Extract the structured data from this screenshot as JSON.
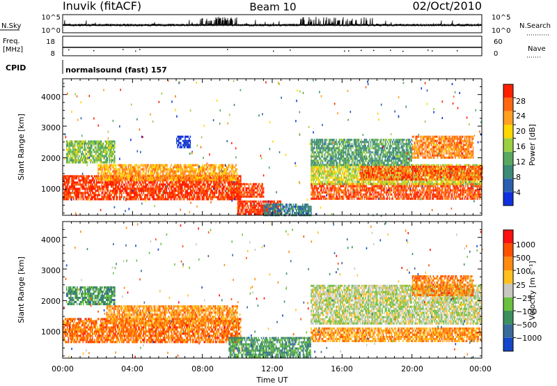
{
  "header": {
    "station": "Inuvik (fitACF)",
    "beam": "Beam 10",
    "date": "02/Oct/2010"
  },
  "top_panels": {
    "nsky_label": "N.Sky",
    "nsearch_label": "N.Search",
    "noise_ticks_left": [
      "10^5",
      "10^0"
    ],
    "noise_ticks_right": [
      "10^5",
      "10^0"
    ],
    "freq_label_1": "Freq.",
    "freq_label_2": "[MHz]",
    "freq_ticks": [
      "18",
      "8"
    ],
    "nave_label": "Nave",
    "nave_ticks": [
      "60",
      "0"
    ],
    "cpid_label": "CPID",
    "cpid_text": "normalsound (fast) 157"
  },
  "chart_data": [
    {
      "type": "heatmap",
      "title": "Power",
      "ylabel": "Slant Range [km]",
      "y_ticks": [
        "4000",
        "3000",
        "2000",
        "1000"
      ],
      "ylim": [
        180,
        4500
      ],
      "xlim": [
        0,
        24
      ],
      "colorbar_label": "Power [dB]",
      "colorbar_ticks": [
        "28",
        "24",
        "20",
        "16",
        "12",
        "8",
        "4"
      ],
      "colorscale": [
        "#1030e0",
        "#2a5fb0",
        "#3c8a78",
        "#5aa860",
        "#9cd040",
        "#ffd700",
        "#ffa020",
        "#ff6810",
        "#ff2000"
      ],
      "bands": [
        {
          "t0": 0.0,
          "t1": 10.2,
          "r0": 700,
          "r1": 1450,
          "level": 0.92
        },
        {
          "t0": 2.0,
          "t1": 10.0,
          "r0": 1300,
          "r1": 1800,
          "level": 0.72
        },
        {
          "t0": 0.2,
          "t1": 3.0,
          "r0": 1850,
          "r1": 2550,
          "level": 0.45
        },
        {
          "t0": 6.5,
          "t1": 7.3,
          "r0": 2350,
          "r1": 2700,
          "level": 0.05
        },
        {
          "t0": 9.5,
          "t1": 11.5,
          "r0": 800,
          "r1": 1200,
          "level": 0.9
        },
        {
          "t0": 10.0,
          "t1": 12.5,
          "r0": 200,
          "r1": 650,
          "level": 0.96
        },
        {
          "t0": 11.5,
          "t1": 14.2,
          "r0": 200,
          "r1": 550,
          "level": 0.25
        },
        {
          "t0": 14.2,
          "t1": 24.0,
          "r0": 700,
          "r1": 1200,
          "level": 0.88
        },
        {
          "t0": 14.2,
          "t1": 24.0,
          "r0": 1200,
          "r1": 1800,
          "level": 0.55
        },
        {
          "t0": 17.0,
          "t1": 24.0,
          "r0": 1350,
          "r1": 1750,
          "level": 0.85
        },
        {
          "t0": 14.2,
          "t1": 20.0,
          "r0": 1800,
          "r1": 2600,
          "level": 0.35
        },
        {
          "t0": 20.0,
          "t1": 23.5,
          "r0": 2000,
          "r1": 2700,
          "level": 0.78
        }
      ]
    },
    {
      "type": "heatmap",
      "title": "Velocity",
      "ylabel": "Slant Range [km]",
      "y_ticks": [
        "4000",
        "3000",
        "2000",
        "1000"
      ],
      "ylim": [
        180,
        4500
      ],
      "xlim": [
        0,
        24
      ],
      "colorbar_label": "Velocity [m s⁻¹]",
      "colorbar_ticks": [
        "1000",
        "500",
        "100",
        "25",
        "−25",
        "−100",
        "−500",
        "−1000"
      ],
      "colorscale": [
        "#1545c8",
        "#3a6a9a",
        "#3c9060",
        "#6cc040",
        "#c8c8c0",
        "#ffc020",
        "#ff8a10",
        "#ff5000",
        "#ff1010"
      ],
      "bands": [
        {
          "t0": 0.0,
          "t1": 10.2,
          "r0": 700,
          "r1": 1450,
          "level": 0.77
        },
        {
          "t0": 2.5,
          "t1": 10.0,
          "r0": 1300,
          "r1": 1850,
          "level": 0.7
        },
        {
          "t0": 0.2,
          "t1": 3.0,
          "r0": 1900,
          "r1": 2450,
          "level": 0.3
        },
        {
          "t0": 9.5,
          "t1": 14.2,
          "r0": 200,
          "r1": 850,
          "level": 0.3
        },
        {
          "t0": 14.2,
          "t1": 24.0,
          "r0": 700,
          "r1": 1150,
          "level": 0.7
        },
        {
          "t0": 14.2,
          "t1": 24.0,
          "r0": 1300,
          "r1": 2500,
          "level": 0.48
        },
        {
          "t0": 20.0,
          "t1": 23.5,
          "r0": 2200,
          "r1": 2800,
          "level": 0.75
        }
      ]
    }
  ],
  "x_axis": {
    "tick_labels": [
      "00:00",
      "04:00",
      "08:00",
      "12:00",
      "16:00",
      "20:00",
      "00:00"
    ],
    "label": "Time UT"
  }
}
